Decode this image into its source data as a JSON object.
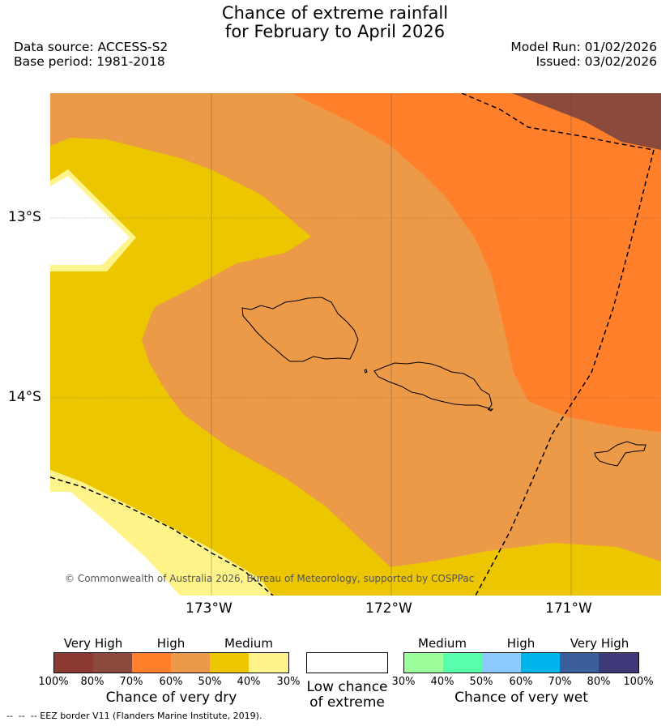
{
  "title": {
    "line1": "Chance of extreme rainfall",
    "line2": "for February to April 2026"
  },
  "meta": {
    "data_source": "Data source: ACCESS-S2",
    "base_period": "Base period: 1981-2018",
    "model_run": "Model Run: 01/02/2026",
    "issued": "Issued: 03/02/2026"
  },
  "map": {
    "lat_labels": [
      "13°S",
      "14°S"
    ],
    "lon_labels": [
      "173°W",
      "172°W",
      "171°W"
    ],
    "copyright": "© Commonwealth of Australia 2026, Bureau of Meteorology, supported by COSPPac"
  },
  "colors": {
    "dry_very_high_1": "#8b3a32",
    "dry_very_high_2": "#8b4a3c",
    "dry_high_1": "#ff7f2a",
    "dry_high_2": "#ec9a47",
    "dry_medium_1": "#ecc600",
    "dry_medium_2": "#fff48a",
    "wet_medium_1": "#9cff9c",
    "wet_medium_2": "#57ffaa",
    "wet_high_1": "#8bcafa",
    "wet_high_2": "#00b4ec",
    "wet_very_high_1": "#3a5e9c",
    "wet_very_high_2": "#3e3a79"
  },
  "legend": {
    "dry": {
      "categories": [
        "Very High",
        "High",
        "Medium"
      ],
      "ticks": [
        "100%",
        "80%",
        "70%",
        "60%",
        "50%",
        "40%",
        "30%"
      ],
      "title": "Chance of very dry"
    },
    "low": {
      "line1": "Low chance",
      "line2": "of extreme"
    },
    "wet": {
      "categories": [
        "Medium",
        "High",
        "Very High"
      ],
      "ticks": [
        "30%",
        "40%",
        "50%",
        "60%",
        "70%",
        "80%",
        "100%"
      ],
      "title": "Chance of very wet"
    }
  },
  "footnote": "--  --  -- EEZ border V11 (Flanders Marine Institute, 2019)."
}
